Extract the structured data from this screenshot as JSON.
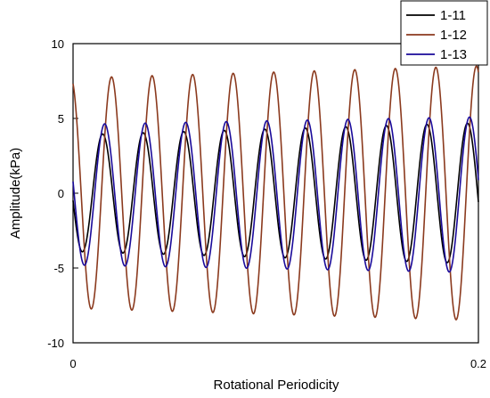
{
  "chart_data": {
    "type": "line",
    "title": "",
    "xlabel": "Rotational Periodicity",
    "ylabel": "Amplitude(kPa)",
    "xlim": [
      0,
      0.2
    ],
    "ylim": [
      -10,
      10
    ],
    "x_ticks": [
      0,
      0.2
    ],
    "x_tick_labels": [
      "0",
      "0.2"
    ],
    "y_ticks": [
      -10,
      -5,
      0,
      5,
      10
    ],
    "y_tick_labels": [
      "-10",
      "-5",
      "0",
      "5",
      "10"
    ],
    "grid": false,
    "legend_position": "top-right",
    "cycles": 10,
    "series": [
      {
        "name": "1-11",
        "color": "#000000",
        "amp_start": 3.9,
        "amp_end": 4.7,
        "phase": 0.52,
        "offset": 0.0
      },
      {
        "name": "1-12",
        "color": "#8B3A1E",
        "amp_start": 7.7,
        "amp_end": 8.5,
        "phase": 0.3,
        "offset": 0.0
      },
      {
        "name": "1-13",
        "color": "#1A0A9A",
        "amp_start": 4.7,
        "amp_end": 5.2,
        "phase": 0.47,
        "offset": -0.1
      }
    ]
  }
}
